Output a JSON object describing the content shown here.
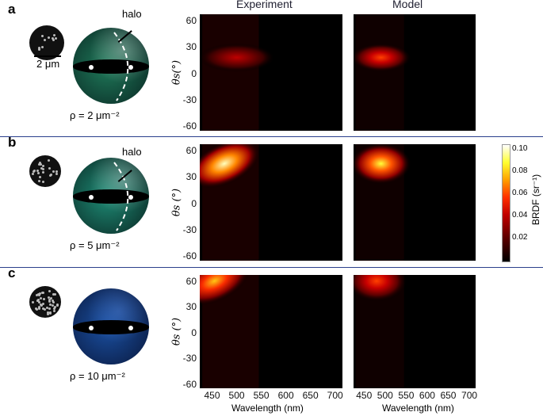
{
  "columns": {
    "experiment": "Experiment",
    "model": "Model"
  },
  "panels": [
    {
      "label": "a",
      "rho": "ρ = 2 μm⁻²",
      "halo": "halo",
      "scale": "2 μm",
      "sphere_color": "#1f7a5a"
    },
    {
      "label": "b",
      "rho": "ρ = 5 μm⁻²",
      "halo": "halo",
      "sphere_color": "#1e8c76"
    },
    {
      "label": "c",
      "rho": "ρ = 10 μm⁻²",
      "sphere_color": "#1a4fa0"
    }
  ],
  "axis": {
    "ylabel": "θs(°)",
    "xlabel": "Wavelength (nm)",
    "yticks": [
      "60",
      "30",
      "0",
      "-30",
      "-60"
    ],
    "xticks": [
      "450",
      "500",
      "550",
      "600",
      "650",
      "700"
    ]
  },
  "colorbar": {
    "label": "BRDF (sr⁻¹)",
    "ticks": [
      "0.10",
      "0.08",
      "0.06",
      "0.04",
      "0.02"
    ]
  },
  "chart_data": {
    "type": "heatmap",
    "xlabel": "Wavelength (nm)",
    "ylabel": "θs (°)",
    "xlim": [
      425,
      715
    ],
    "ylim": [
      -65,
      67
    ],
    "colorbar_range": [
      0,
      0.105
    ],
    "maps": [
      {
        "panel": "a",
        "column": "Experiment",
        "peak": {
          "wavelength": 500,
          "angle": 18,
          "value": 0.04
        }
      },
      {
        "panel": "a",
        "column": "Model",
        "peak": {
          "wavelength": 490,
          "angle": 18,
          "value": 0.06
        }
      },
      {
        "panel": "b",
        "column": "Experiment",
        "peak": {
          "wavelength": 475,
          "angle": 45,
          "value": 0.1
        }
      },
      {
        "panel": "b",
        "column": "Model",
        "peak": {
          "wavelength": 490,
          "angle": 45,
          "value": 0.09
        }
      },
      {
        "panel": "c",
        "column": "Experiment",
        "peak": {
          "wavelength": 455,
          "angle": 60,
          "value": 0.08
        }
      },
      {
        "panel": "c",
        "column": "Model",
        "peak": {
          "wavelength": 480,
          "angle": 60,
          "value": 0.06
        }
      }
    ]
  }
}
